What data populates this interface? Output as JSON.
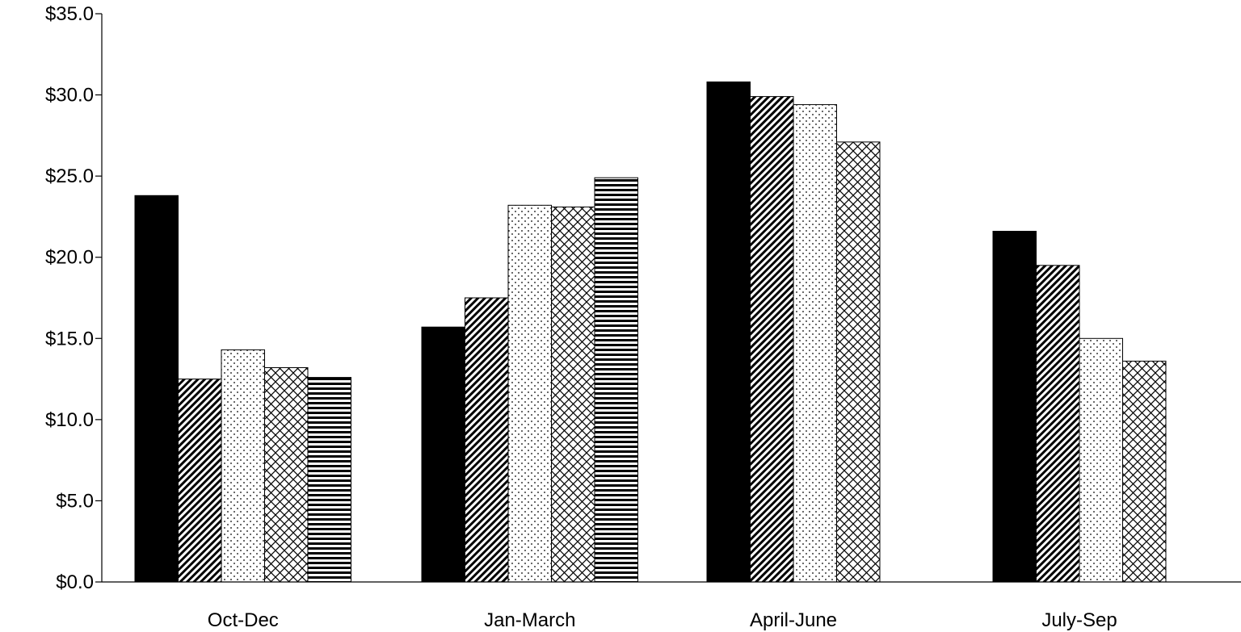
{
  "chart_data": {
    "type": "bar",
    "title": "",
    "xlabel": "",
    "ylabel": "",
    "ylim": [
      0,
      35
    ],
    "yticks": [
      0,
      5,
      10,
      15,
      20,
      25,
      30,
      35
    ],
    "ytick_labels": [
      "$0.0",
      "$5.0",
      "$10.0",
      "$15.0",
      "$20.0",
      "$25.0",
      "$30.0",
      "$35.0"
    ],
    "categories": [
      "Oct-Dec",
      "Jan-March",
      "April-June",
      "July-Sep"
    ],
    "grid": false,
    "legend": "none",
    "series": [
      {
        "pattern": "solid-black",
        "values": [
          23.8,
          15.7,
          30.8,
          21.6
        ]
      },
      {
        "pattern": "diagonal-hatch",
        "values": [
          12.5,
          17.5,
          29.9,
          19.5
        ]
      },
      {
        "pattern": "dots",
        "values": [
          14.3,
          23.2,
          29.4,
          15.0
        ]
      },
      {
        "pattern": "crosshatch",
        "values": [
          13.2,
          23.1,
          27.1,
          13.6
        ]
      },
      {
        "pattern": "horizontal-stripes",
        "values": [
          12.6,
          24.9,
          null,
          null
        ]
      }
    ],
    "colors": {
      "ink": "#000000",
      "background": "#ffffff"
    }
  }
}
